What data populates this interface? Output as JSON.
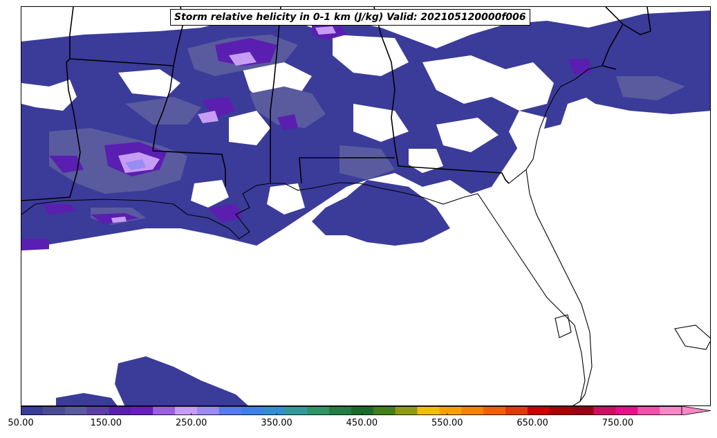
{
  "title": "Storm relative helicity in 0-1 km (J/kg) Valid: 202105120000f006",
  "colorbar": {
    "min": 50,
    "step": 25,
    "max": 825,
    "extend": "max",
    "colors": [
      "#3b3b9a",
      "#4a4a95",
      "#5a5a9f",
      "#5c3fa5",
      "#5a1fb0",
      "#6a1ec0",
      "#9a60e0",
      "#c79cf4",
      "#9a8cf0",
      "#5a7af0",
      "#3f7fe8",
      "#2f8fd0",
      "#339999",
      "#2e9467",
      "#237d45",
      "#1a6b2a",
      "#437e1a",
      "#8e9a15",
      "#f0c000",
      "#f5a000",
      "#f58200",
      "#f06000",
      "#e03a0a",
      "#cc0000",
      "#aa0000",
      "#990018",
      "#cc1060",
      "#e8108a",
      "#f050a8",
      "#f888c8"
    ],
    "tick_labels": [
      "50.00",
      "150.00",
      "250.00",
      "350.00",
      "450.00",
      "550.00",
      "650.00",
      "750.00"
    ],
    "tick_values": [
      50,
      150,
      250,
      350,
      450,
      550,
      650,
      750
    ]
  },
  "map": {
    "region": "Southeastern United States and Gulf of Mexico",
    "colors": {
      "land_border": "#000000",
      "band_50": "#3b3b9a",
      "band_75": "#5a5a9f",
      "band_100": "#5a1fb0",
      "band_150": "#c79cf4",
      "band_200": "#9a8cf0"
    }
  }
}
